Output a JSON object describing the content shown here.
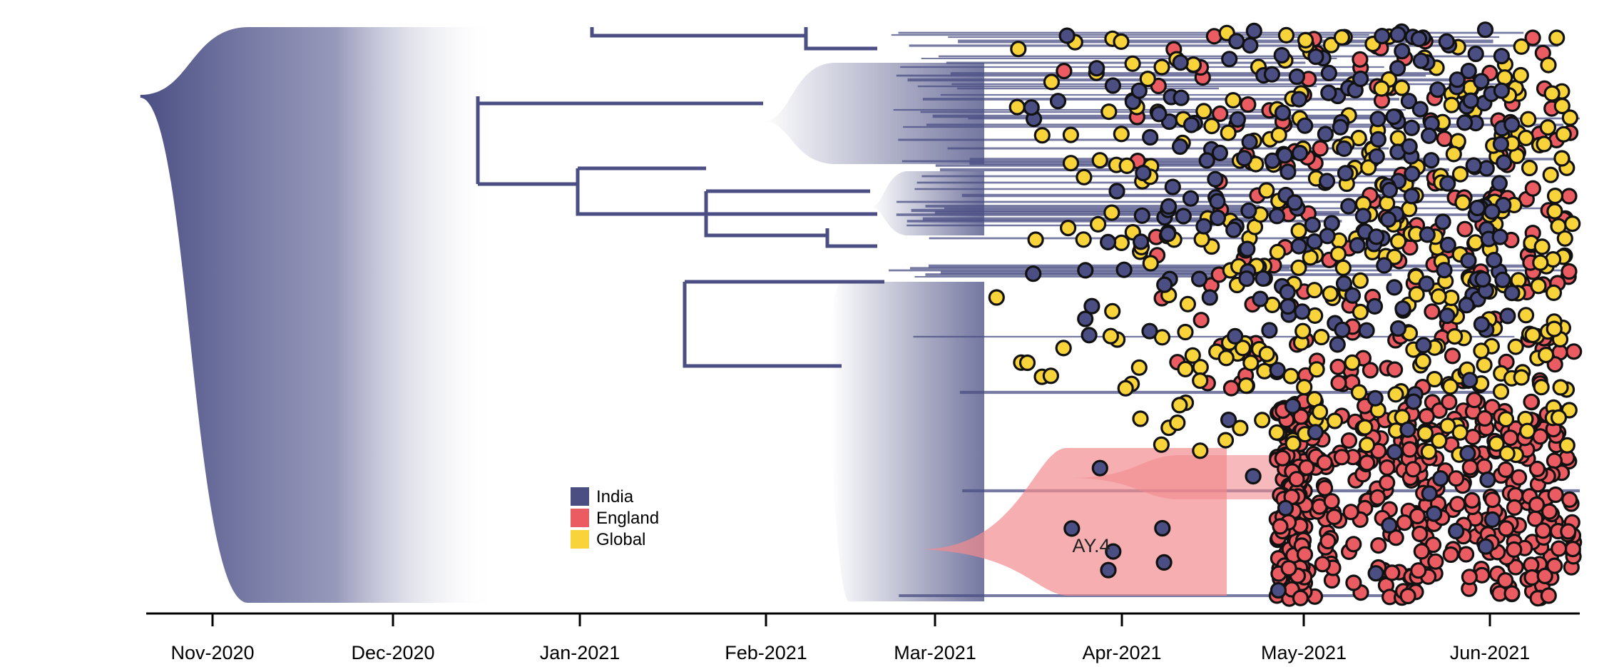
{
  "chart_data": {
    "type": "phylogenetic-tree",
    "title": "",
    "xlabel": "",
    "ylabel": "",
    "x_axis": {
      "ticks": [
        "Nov-2020",
        "Dec-2020",
        "Jan-2021",
        "Feb-2021",
        "Mar-2021",
        "Apr-2021",
        "May-2021",
        "Jun-2021"
      ],
      "range": [
        "2020-10-20",
        "2021-06-16"
      ]
    },
    "legend": {
      "position": "bottom-center",
      "entries": [
        {
          "label": "India",
          "color": "#4a4e83"
        },
        {
          "label": "England",
          "color": "#ea5c61"
        },
        {
          "label": "Global",
          "color": "#f9d33a"
        }
      ]
    },
    "annotations": [
      {
        "text": "AY.4",
        "x": "2021-03-31"
      }
    ],
    "lineage_origin": "2020-10-20",
    "tips": {
      "India": {
        "count": 240,
        "date_range": [
          "2021-03-15",
          "2021-06-05"
        ]
      },
      "England": {
        "count": 650,
        "date_range": [
          "2021-03-20",
          "2021-06-15"
        ]
      },
      "Global": {
        "count": 360,
        "date_range": [
          "2021-03-10",
          "2021-06-15"
        ]
      }
    }
  }
}
